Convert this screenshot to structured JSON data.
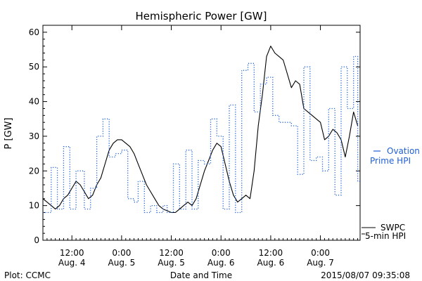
{
  "chart_data": {
    "type": "line",
    "title": "Hemispheric Power [GW]",
    "ylabel": "P [GW]",
    "xlabel": "Date and Time",
    "ylim": [
      0,
      62
    ],
    "y_ticks": [
      0,
      10,
      20,
      30,
      40,
      50,
      60
    ],
    "xlim": [
      "2015-08-04T05:00",
      "2015-08-07T09:35"
    ],
    "x_ticks": [
      {
        "t": "2015-08-04T12:00",
        "time": "12:00",
        "date": "Aug. 4"
      },
      {
        "t": "2015-08-05T00:00",
        "time": "0:00",
        "date": "Aug. 5"
      },
      {
        "t": "2015-08-05T12:00",
        "time": "12:00",
        "date": "Aug. 5"
      },
      {
        "t": "2015-08-06T00:00",
        "time": "0:00",
        "date": "Aug. 6"
      },
      {
        "t": "2015-08-06T12:00",
        "time": "12:00",
        "date": "Aug. 6"
      },
      {
        "t": "2015-08-07T00:00",
        "time": "0:00",
        "date": "Aug. 7"
      }
    ],
    "grid": false,
    "series": [
      {
        "name": "SWPC 5-min HPI",
        "style": "solid",
        "color": "#000000",
        "points": [
          [
            "2015-08-04T05:00",
            12
          ],
          [
            "2015-08-04T06:00",
            11
          ],
          [
            "2015-08-04T07:00",
            10
          ],
          [
            "2015-08-04T08:00",
            9
          ],
          [
            "2015-08-04T09:00",
            10
          ],
          [
            "2015-08-04T10:00",
            12
          ],
          [
            "2015-08-04T11:00",
            13
          ],
          [
            "2015-08-04T12:00",
            15
          ],
          [
            "2015-08-04T13:00",
            17
          ],
          [
            "2015-08-04T14:00",
            16
          ],
          [
            "2015-08-04T15:00",
            14
          ],
          [
            "2015-08-04T16:00",
            12
          ],
          [
            "2015-08-04T17:00",
            13
          ],
          [
            "2015-08-04T18:00",
            16
          ],
          [
            "2015-08-04T19:00",
            18
          ],
          [
            "2015-08-04T20:00",
            22
          ],
          [
            "2015-08-04T21:00",
            26
          ],
          [
            "2015-08-04T22:00",
            28
          ],
          [
            "2015-08-04T23:00",
            29
          ],
          [
            "2015-08-05T00:00",
            29
          ],
          [
            "2015-08-05T01:00",
            28
          ],
          [
            "2015-08-05T02:00",
            27
          ],
          [
            "2015-08-05T03:00",
            25
          ],
          [
            "2015-08-05T04:00",
            22
          ],
          [
            "2015-08-05T05:00",
            19
          ],
          [
            "2015-08-05T06:00",
            16
          ],
          [
            "2015-08-05T07:00",
            14
          ],
          [
            "2015-08-05T08:00",
            12
          ],
          [
            "2015-08-05T09:00",
            10
          ],
          [
            "2015-08-05T10:00",
            9
          ],
          [
            "2015-08-05T11:00",
            8.5
          ],
          [
            "2015-08-05T12:00",
            8
          ],
          [
            "2015-08-05T13:00",
            8
          ],
          [
            "2015-08-05T14:00",
            9
          ],
          [
            "2015-08-05T15:00",
            10
          ],
          [
            "2015-08-05T16:00",
            11
          ],
          [
            "2015-08-05T17:00",
            10
          ],
          [
            "2015-08-05T18:00",
            12
          ],
          [
            "2015-08-05T19:00",
            16
          ],
          [
            "2015-08-05T20:00",
            20
          ],
          [
            "2015-08-05T21:00",
            23
          ],
          [
            "2015-08-05T22:00",
            26
          ],
          [
            "2015-08-05T23:00",
            28
          ],
          [
            "2015-08-06T00:00",
            27
          ],
          [
            "2015-08-06T01:00",
            22
          ],
          [
            "2015-08-06T02:00",
            17
          ],
          [
            "2015-08-06T03:00",
            13
          ],
          [
            "2015-08-06T04:00",
            11
          ],
          [
            "2015-08-06T05:00",
            12
          ],
          [
            "2015-08-06T06:00",
            13
          ],
          [
            "2015-08-06T07:00",
            12
          ],
          [
            "2015-08-06T08:00",
            20
          ],
          [
            "2015-08-06T09:00",
            33
          ],
          [
            "2015-08-06T10:00",
            42
          ],
          [
            "2015-08-06T11:00",
            53
          ],
          [
            "2015-08-06T12:00",
            56
          ],
          [
            "2015-08-06T13:00",
            54
          ],
          [
            "2015-08-06T14:00",
            53
          ],
          [
            "2015-08-06T15:00",
            52
          ],
          [
            "2015-08-06T16:00",
            48
          ],
          [
            "2015-08-06T17:00",
            44
          ],
          [
            "2015-08-06T18:00",
            46
          ],
          [
            "2015-08-06T19:00",
            45
          ],
          [
            "2015-08-06T20:00",
            38
          ],
          [
            "2015-08-06T21:00",
            37
          ],
          [
            "2015-08-06T22:00",
            36
          ],
          [
            "2015-08-06T23:00",
            35
          ],
          [
            "2015-08-07T00:00",
            34
          ],
          [
            "2015-08-07T01:00",
            29
          ],
          [
            "2015-08-07T02:00",
            30
          ],
          [
            "2015-08-07T03:00",
            32
          ],
          [
            "2015-08-07T04:00",
            31
          ],
          [
            "2015-08-07T05:00",
            29
          ],
          [
            "2015-08-07T06:00",
            24
          ],
          [
            "2015-08-07T07:00",
            30
          ],
          [
            "2015-08-07T08:00",
            37
          ],
          [
            "2015-08-07T09:00",
            33
          ]
        ]
      },
      {
        "name": "Ovation Prime HPI",
        "style": "dotted-step",
        "color": "#1f5fd6",
        "points": [
          [
            "2015-08-04T05:00",
            8
          ],
          [
            "2015-08-04T07:00",
            21
          ],
          [
            "2015-08-04T08:30",
            9
          ],
          [
            "2015-08-04T10:00",
            27
          ],
          [
            "2015-08-04T11:30",
            9
          ],
          [
            "2015-08-04T13:00",
            20
          ],
          [
            "2015-08-04T15:00",
            9
          ],
          [
            "2015-08-04T16:30",
            15
          ],
          [
            "2015-08-04T18:00",
            30
          ],
          [
            "2015-08-04T19:30",
            35
          ],
          [
            "2015-08-04T21:00",
            24
          ],
          [
            "2015-08-04T22:30",
            25
          ],
          [
            "2015-08-05T00:00",
            26
          ],
          [
            "2015-08-05T01:30",
            12
          ],
          [
            "2015-08-05T03:00",
            11
          ],
          [
            "2015-08-05T04:00",
            17
          ],
          [
            "2015-08-05T05:30",
            8
          ],
          [
            "2015-08-05T07:00",
            10
          ],
          [
            "2015-08-05T08:30",
            8
          ],
          [
            "2015-08-05T10:00",
            10
          ],
          [
            "2015-08-05T11:00",
            8
          ],
          [
            "2015-08-05T12:30",
            22
          ],
          [
            "2015-08-05T14:00",
            9
          ],
          [
            "2015-08-05T15:30",
            26
          ],
          [
            "2015-08-05T17:00",
            9
          ],
          [
            "2015-08-05T18:30",
            23
          ],
          [
            "2015-08-05T20:00",
            22
          ],
          [
            "2015-08-05T21:30",
            35
          ],
          [
            "2015-08-05T23:00",
            30
          ],
          [
            "2015-08-06T00:30",
            9
          ],
          [
            "2015-08-06T02:00",
            39
          ],
          [
            "2015-08-06T03:30",
            8
          ],
          [
            "2015-08-06T05:00",
            49
          ],
          [
            "2015-08-06T06:30",
            51
          ],
          [
            "2015-08-06T08:00",
            37
          ],
          [
            "2015-08-06T09:30",
            45
          ],
          [
            "2015-08-06T11:00",
            47
          ],
          [
            "2015-08-06T12:30",
            36
          ],
          [
            "2015-08-06T14:00",
            34
          ],
          [
            "2015-08-06T15:30",
            34
          ],
          [
            "2015-08-06T17:00",
            33
          ],
          [
            "2015-08-06T18:30",
            19
          ],
          [
            "2015-08-06T20:00",
            50
          ],
          [
            "2015-08-06T21:30",
            23
          ],
          [
            "2015-08-06T23:00",
            24
          ],
          [
            "2015-08-07T00:30",
            20
          ],
          [
            "2015-08-07T02:00",
            38
          ],
          [
            "2015-08-07T03:30",
            13
          ],
          [
            "2015-08-07T05:00",
            50
          ],
          [
            "2015-08-07T06:30",
            38
          ],
          [
            "2015-08-07T08:00",
            53
          ],
          [
            "2015-08-07T09:00",
            17
          ]
        ]
      }
    ]
  },
  "legend": {
    "ovation_line1": "Ovation",
    "ovation_line2": "Prime HPI",
    "swpc_line1": "SWPC",
    "swpc_line2": "5-min HPI"
  },
  "footer": {
    "left": "Plot: CCMC",
    "right": "2015/08/07 09:35:08"
  }
}
